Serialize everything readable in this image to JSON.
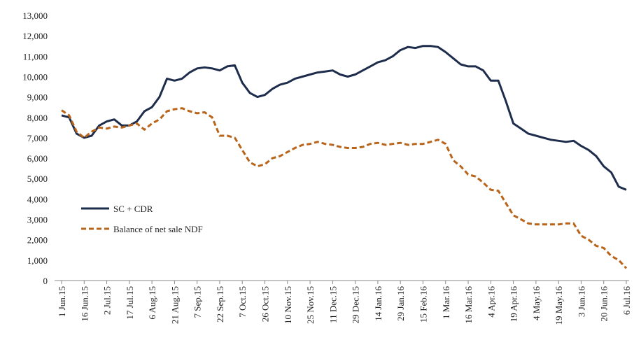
{
  "chart_data": {
    "type": "line",
    "categories": [
      "1 Jun.15",
      null,
      null,
      "16 Jun.15",
      null,
      null,
      "2 Jul.15",
      null,
      null,
      "17 Jul.15",
      null,
      null,
      "6 Aug.15",
      null,
      null,
      "21 Aug.15",
      null,
      null,
      "7 Sep.15",
      null,
      null,
      "22 Sep.15",
      null,
      null,
      "7 Oct.15",
      null,
      null,
      "26 Oct.15",
      null,
      null,
      "10 Nov.15",
      null,
      null,
      "25 Nov.15",
      null,
      null,
      "11 Dec.15",
      null,
      null,
      "29 Dec.15",
      null,
      null,
      "14 Jan.16",
      null,
      null,
      "29 Jan.16",
      null,
      null,
      "15 Feb.16",
      null,
      null,
      "1 Mar.16",
      null,
      null,
      "16 Mar.16",
      null,
      null,
      "4 Apr.16",
      null,
      null,
      "19 Apr.16",
      null,
      null,
      "4 May.16",
      null,
      null,
      "19 May.16",
      null,
      null,
      "3 Jun.16",
      null,
      null,
      "20 Jun.16",
      null,
      null,
      "6 Jul.16"
    ],
    "series": [
      {
        "name": "SC + CDR",
        "color": "#1f2d4d",
        "dash": false,
        "values": [
          8100,
          8000,
          7200,
          7000,
          7100,
          7600,
          7800,
          7900,
          7600,
          7600,
          7800,
          8300,
          8500,
          9000,
          9900,
          9800,
          9900,
          10200,
          10400,
          10450,
          10400,
          10300,
          10500,
          10550,
          9700,
          9200,
          9000,
          9100,
          9400,
          9600,
          9700,
          9900,
          10000,
          10100,
          10200,
          10250,
          10300,
          10100,
          10000,
          10100,
          10300,
          10500,
          10700,
          10800,
          11000,
          11300,
          11450,
          11400,
          11500,
          11500,
          11450,
          11200,
          10900,
          10600,
          10500,
          10500,
          10300,
          9800,
          9800,
          8800,
          7700,
          7450,
          7200,
          7100,
          7000,
          6900,
          6850,
          6800,
          6850,
          6600,
          6400,
          6100,
          5600,
          5300,
          4600,
          4450
        ]
      },
      {
        "name": "Balance of net sale NDF",
        "color": "#b8641a",
        "dash": true,
        "values": [
          8350,
          8100,
          7300,
          7000,
          7300,
          7500,
          7450,
          7550,
          7500,
          7600,
          7700,
          7400,
          7700,
          7900,
          8300,
          8400,
          8450,
          8300,
          8200,
          8250,
          8000,
          7100,
          7100,
          7000,
          6400,
          5800,
          5600,
          5700,
          6000,
          6100,
          6300,
          6500,
          6650,
          6700,
          6800,
          6700,
          6650,
          6550,
          6500,
          6500,
          6550,
          6700,
          6750,
          6650,
          6700,
          6750,
          6650,
          6700,
          6700,
          6800,
          6900,
          6700,
          5900,
          5600,
          5200,
          5100,
          4800,
          4450,
          4400,
          3800,
          3200,
          3000,
          2800,
          2750,
          2750,
          2750,
          2750,
          2800,
          2800,
          2200,
          2000,
          1700,
          1600,
          1200,
          1000,
          600
        ]
      }
    ],
    "ylim": [
      0,
      13000
    ],
    "yticks": [
      0,
      {
        "value": 1000,
        "label": "1,000"
      },
      {
        "value": 2000,
        "label": "2,000"
      },
      {
        "value": 3000,
        "label": "3,000"
      },
      {
        "value": 4000,
        "label": "4,000"
      },
      {
        "value": 5000,
        "label": "5,000"
      },
      {
        "value": 6000,
        "label": "6,000"
      },
      {
        "value": 7000,
        "label": "7,000"
      },
      {
        "value": 8000,
        "label": "8,000"
      },
      {
        "value": 9000,
        "label": "9,000"
      },
      {
        "value": 10000,
        "label": "10,000"
      },
      {
        "value": 11000,
        "label": "11,000"
      },
      {
        "value": 12000,
        "label": "12,000"
      },
      {
        "value": 13000,
        "label": "13,000"
      }
    ],
    "grid": false
  }
}
